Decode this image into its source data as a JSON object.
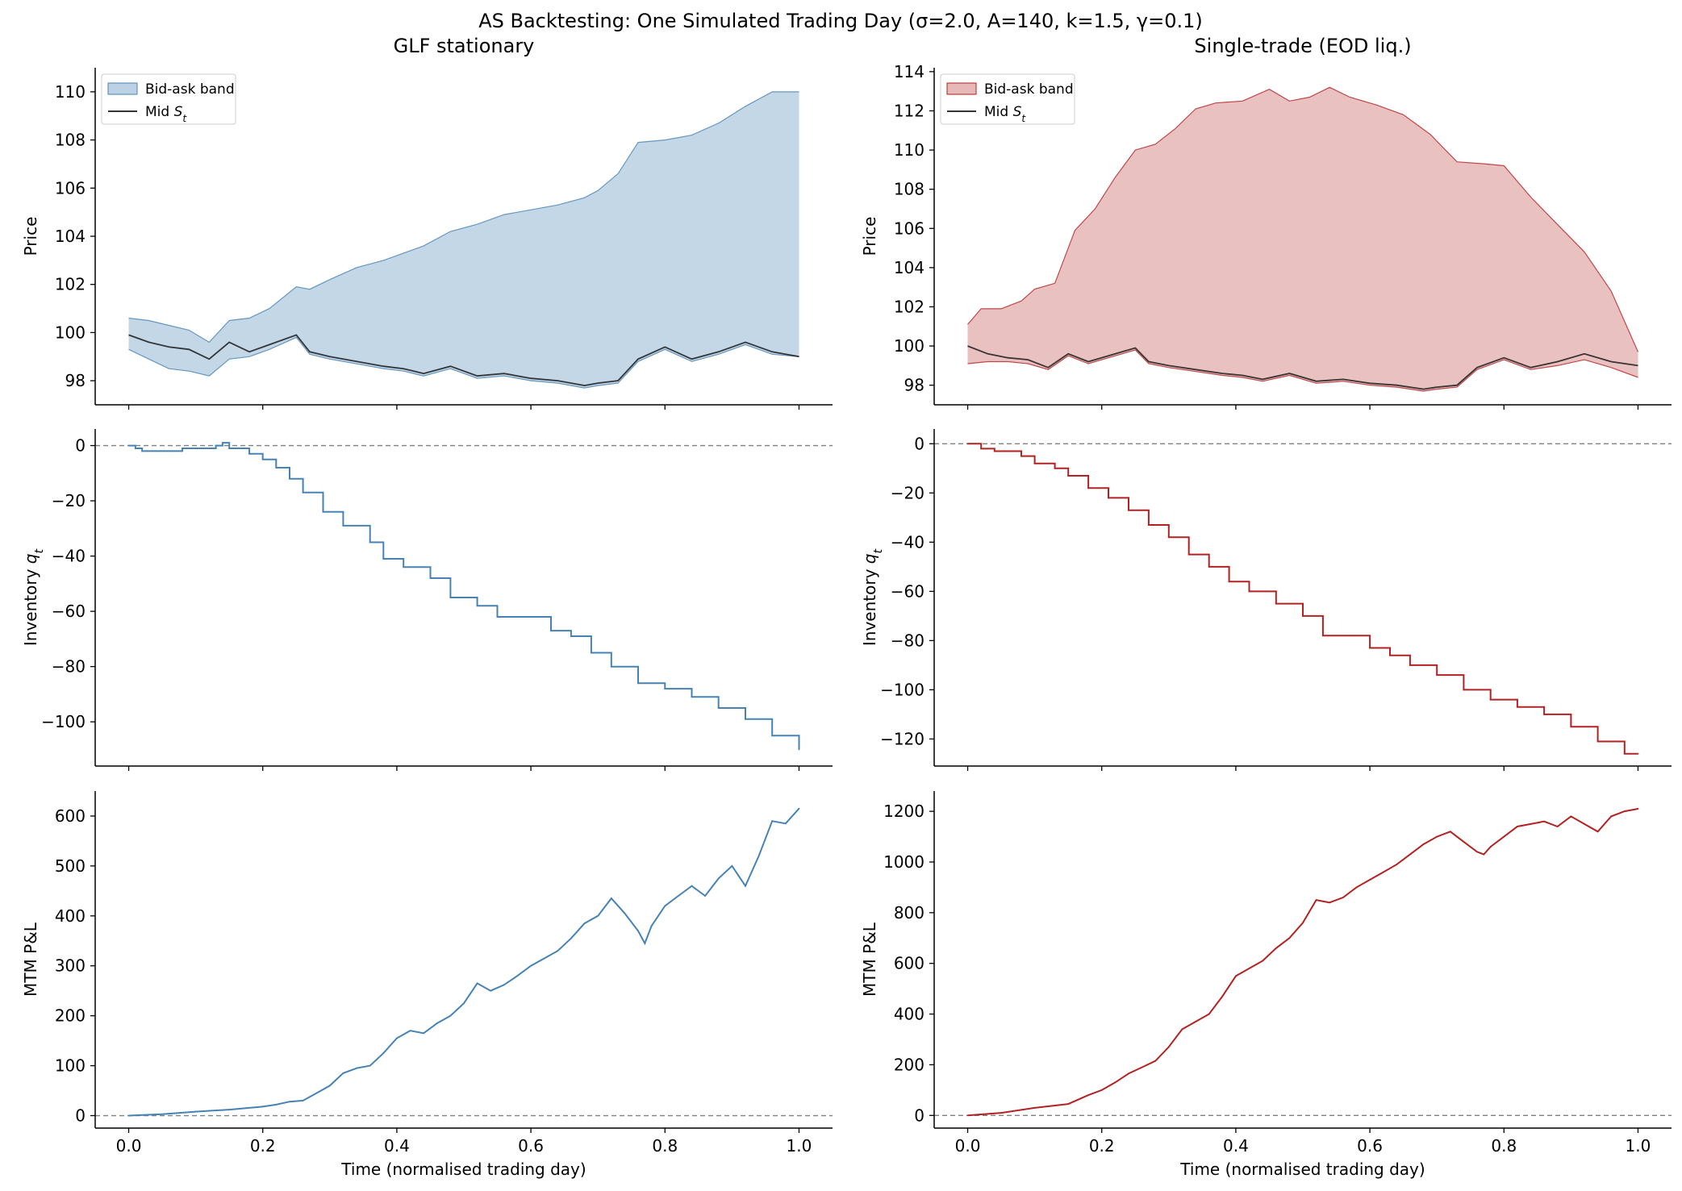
{
  "suptitle": "AS Backtesting: One Simulated Trading Day  (σ=2.0, A=140, k=1.5, γ=0.1)",
  "colors": {
    "glf_line": "#4682b4",
    "glf_band": "#b0c9df",
    "single_line": "#b22222",
    "single_band": "#e3acac",
    "mid": "#1a1a1a",
    "zero_line": "#808080"
  },
  "chart_data": [
    {
      "type": "area",
      "panel": "glf-price",
      "title": "GLF stationary",
      "ylabel": "Price",
      "xlabel": "",
      "xlim": [
        -0.05,
        1.05
      ],
      "ylim": [
        97.0,
        111.0
      ],
      "xticks": [
        0.0,
        0.2,
        0.4,
        0.6,
        0.8,
        1.0
      ],
      "xtick_labels": [
        "",
        "",
        "",
        "",
        "",
        ""
      ],
      "yticks": [
        98,
        100,
        102,
        104,
        106,
        108,
        110
      ],
      "ytick_labels": [
        "98",
        "100",
        "102",
        "104",
        "106",
        "108",
        "110"
      ],
      "legend": {
        "position": "top-left",
        "entries": [
          {
            "label": "Bid-ask band",
            "kind": "band"
          },
          {
            "label": "Mid S_t",
            "kind": "line"
          }
        ]
      },
      "series": [
        {
          "name": "Mid S_t",
          "x": [
            0,
            0.03,
            0.06,
            0.09,
            0.12,
            0.15,
            0.18,
            0.21,
            0.25,
            0.27,
            0.3,
            0.34,
            0.38,
            0.41,
            0.44,
            0.48,
            0.52,
            0.56,
            0.6,
            0.64,
            0.68,
            0.7,
            0.73,
            0.76,
            0.8,
            0.84,
            0.88,
            0.92,
            0.96,
            1.0
          ],
          "values": [
            99.9,
            99.6,
            99.4,
            99.3,
            98.9,
            99.6,
            99.2,
            99.5,
            99.9,
            99.2,
            99.0,
            98.8,
            98.6,
            98.5,
            98.3,
            98.6,
            98.2,
            98.3,
            98.1,
            98.0,
            97.8,
            97.9,
            98.0,
            98.9,
            99.4,
            98.9,
            99.2,
            99.6,
            99.2,
            99.0
          ]
        },
        {
          "name": "Ask",
          "x": [
            0,
            0.03,
            0.06,
            0.09,
            0.12,
            0.15,
            0.18,
            0.21,
            0.25,
            0.27,
            0.3,
            0.34,
            0.38,
            0.41,
            0.44,
            0.48,
            0.52,
            0.56,
            0.6,
            0.64,
            0.68,
            0.7,
            0.73,
            0.76,
            0.8,
            0.84,
            0.88,
            0.92,
            0.96,
            1.0
          ],
          "values": [
            100.6,
            100.5,
            100.3,
            100.1,
            99.6,
            100.5,
            100.6,
            101.0,
            101.9,
            101.8,
            102.2,
            102.7,
            103.0,
            103.3,
            103.6,
            104.2,
            104.5,
            104.9,
            105.1,
            105.3,
            105.6,
            105.9,
            106.6,
            107.9,
            108.0,
            108.2,
            108.7,
            109.4,
            110.0,
            110.0
          ]
        },
        {
          "name": "Bid",
          "x": [
            0,
            0.03,
            0.06,
            0.09,
            0.12,
            0.15,
            0.18,
            0.21,
            0.25,
            0.27,
            0.3,
            0.34,
            0.38,
            0.41,
            0.44,
            0.48,
            0.52,
            0.56,
            0.6,
            0.64,
            0.68,
            0.7,
            0.73,
            0.76,
            0.8,
            0.84,
            0.88,
            0.92,
            0.96,
            1.0
          ],
          "values": [
            99.3,
            98.9,
            98.5,
            98.4,
            98.2,
            98.9,
            99.0,
            99.3,
            99.8,
            99.1,
            98.9,
            98.7,
            98.5,
            98.4,
            98.2,
            98.5,
            98.1,
            98.2,
            98.0,
            97.9,
            97.7,
            97.8,
            97.9,
            98.8,
            99.3,
            98.8,
            99.1,
            99.5,
            99.1,
            99.0
          ]
        }
      ]
    },
    {
      "type": "area",
      "panel": "single-price",
      "title": "Single-trade (EOD liq.)",
      "ylabel": "Price",
      "xlabel": "",
      "xlim": [
        -0.05,
        1.05
      ],
      "ylim": [
        97.0,
        114.2
      ],
      "xticks": [
        0.0,
        0.2,
        0.4,
        0.6,
        0.8,
        1.0
      ],
      "xtick_labels": [
        "",
        "",
        "",
        "",
        "",
        ""
      ],
      "yticks": [
        98,
        100,
        102,
        104,
        106,
        108,
        110,
        112,
        114
      ],
      "ytick_labels": [
        "98",
        "100",
        "102",
        "104",
        "106",
        "108",
        "110",
        "112",
        "114"
      ],
      "legend": {
        "position": "top-left",
        "entries": [
          {
            "label": "Bid-ask band",
            "kind": "band"
          },
          {
            "label": "Mid S_t",
            "kind": "line"
          }
        ]
      },
      "series": [
        {
          "name": "Mid S_t",
          "x": [
            0,
            0.03,
            0.06,
            0.09,
            0.12,
            0.15,
            0.18,
            0.21,
            0.25,
            0.27,
            0.3,
            0.34,
            0.38,
            0.41,
            0.44,
            0.48,
            0.52,
            0.56,
            0.6,
            0.64,
            0.68,
            0.7,
            0.73,
            0.76,
            0.8,
            0.84,
            0.88,
            0.92,
            0.96,
            1.0
          ],
          "values": [
            100.0,
            99.6,
            99.4,
            99.3,
            98.9,
            99.6,
            99.2,
            99.5,
            99.9,
            99.2,
            99.0,
            98.8,
            98.6,
            98.5,
            98.3,
            98.6,
            98.2,
            98.3,
            98.1,
            98.0,
            97.8,
            97.9,
            98.0,
            98.9,
            99.4,
            98.9,
            99.2,
            99.6,
            99.2,
            99.0
          ]
        },
        {
          "name": "Ask",
          "x": [
            0,
            0.02,
            0.05,
            0.08,
            0.1,
            0.13,
            0.16,
            0.19,
            0.22,
            0.25,
            0.28,
            0.31,
            0.34,
            0.37,
            0.41,
            0.45,
            0.48,
            0.51,
            0.54,
            0.57,
            0.61,
            0.65,
            0.69,
            0.73,
            0.77,
            0.8,
            0.84,
            0.88,
            0.92,
            0.96,
            1.0
          ],
          "values": [
            101.1,
            101.9,
            101.9,
            102.3,
            102.9,
            103.2,
            105.9,
            107.0,
            108.6,
            110.0,
            110.3,
            111.1,
            112.1,
            112.4,
            112.5,
            113.1,
            112.5,
            112.7,
            113.2,
            112.7,
            112.3,
            111.8,
            110.8,
            109.4,
            109.3,
            109.2,
            107.6,
            106.2,
            104.8,
            102.8,
            99.7
          ]
        },
        {
          "name": "Bid",
          "x": [
            0,
            0.03,
            0.06,
            0.09,
            0.12,
            0.15,
            0.18,
            0.21,
            0.25,
            0.27,
            0.3,
            0.34,
            0.38,
            0.41,
            0.44,
            0.48,
            0.52,
            0.56,
            0.6,
            0.64,
            0.68,
            0.7,
            0.73,
            0.76,
            0.8,
            0.84,
            0.88,
            0.92,
            0.96,
            1.0
          ],
          "values": [
            99.1,
            99.2,
            99.2,
            99.1,
            98.8,
            99.5,
            99.1,
            99.4,
            99.8,
            99.1,
            98.9,
            98.7,
            98.5,
            98.4,
            98.2,
            98.5,
            98.1,
            98.2,
            98.0,
            97.9,
            97.7,
            97.8,
            97.9,
            98.8,
            99.3,
            98.8,
            99.0,
            99.3,
            98.9,
            98.4
          ]
        }
      ]
    },
    {
      "type": "line",
      "panel": "glf-inventory",
      "ylabel": "Inventory q_t",
      "xlabel": "",
      "xlim": [
        -0.05,
        1.05
      ],
      "ylim": [
        -116,
        6
      ],
      "xticks": [
        0.0,
        0.2,
        0.4,
        0.6,
        0.8,
        1.0
      ],
      "xtick_labels": [
        "",
        "",
        "",
        "",
        "",
        ""
      ],
      "yticks": [
        0,
        -20,
        -40,
        -60,
        -80,
        -100
      ],
      "ytick_labels": [
        "0",
        "−20",
        "−40",
        "−60",
        "−80",
        "−100"
      ],
      "step": true,
      "reference_line": 0,
      "series": [
        {
          "name": "",
          "x": [
            0,
            0.01,
            0.02,
            0.06,
            0.08,
            0.1,
            0.13,
            0.14,
            0.15,
            0.18,
            0.2,
            0.22,
            0.24,
            0.26,
            0.29,
            0.32,
            0.36,
            0.38,
            0.41,
            0.45,
            0.48,
            0.52,
            0.55,
            0.59,
            0.63,
            0.66,
            0.69,
            0.72,
            0.76,
            0.8,
            0.84,
            0.88,
            0.92,
            0.96,
            1.0
          ],
          "values": [
            0,
            -1,
            -2,
            -2,
            -1,
            -1,
            0,
            1,
            -1,
            -3,
            -5,
            -8,
            -12,
            -17,
            -24,
            -29,
            -35,
            -41,
            -44,
            -48,
            -55,
            -58,
            -62,
            -62,
            -67,
            -69,
            -75,
            -80,
            -86,
            -88,
            -91,
            -95,
            -99,
            -105,
            -110
          ]
        }
      ]
    },
    {
      "type": "line",
      "panel": "single-inventory",
      "ylabel": "Inventory q_t",
      "xlabel": "",
      "xlim": [
        -0.05,
        1.05
      ],
      "ylim": [
        -131,
        6
      ],
      "xticks": [
        0.0,
        0.2,
        0.4,
        0.6,
        0.8,
        1.0
      ],
      "xtick_labels": [
        "",
        "",
        "",
        "",
        "",
        ""
      ],
      "yticks": [
        0,
        -20,
        -40,
        -60,
        -80,
        -100,
        -120
      ],
      "ytick_labels": [
        "0",
        "−20",
        "−40",
        "−60",
        "−80",
        "−100",
        "−120"
      ],
      "step": true,
      "reference_line": 0,
      "series": [
        {
          "name": "",
          "x": [
            0,
            0.02,
            0.04,
            0.08,
            0.1,
            0.13,
            0.15,
            0.18,
            0.21,
            0.24,
            0.27,
            0.3,
            0.33,
            0.36,
            0.39,
            0.42,
            0.46,
            0.5,
            0.53,
            0.57,
            0.6,
            0.63,
            0.66,
            0.7,
            0.74,
            0.78,
            0.82,
            0.86,
            0.9,
            0.94,
            0.98,
            1.0
          ],
          "values": [
            0,
            -2,
            -3,
            -5,
            -8,
            -10,
            -13,
            -18,
            -22,
            -27,
            -33,
            -38,
            -45,
            -50,
            -56,
            -60,
            -65,
            -70,
            -78,
            -78,
            -83,
            -86,
            -90,
            -94,
            -100,
            -104,
            -107,
            -110,
            -115,
            -121,
            -126,
            -126
          ]
        }
      ]
    },
    {
      "type": "line",
      "panel": "glf-pnl",
      "ylabel": "MTM P&L",
      "xlabel": "Time (normalised trading day)",
      "xlim": [
        -0.05,
        1.05
      ],
      "ylim": [
        -25,
        650
      ],
      "xticks": [
        0.0,
        0.2,
        0.4,
        0.6,
        0.8,
        1.0
      ],
      "xtick_labels": [
        "0.0",
        "0.2",
        "0.4",
        "0.6",
        "0.8",
        "1.0"
      ],
      "yticks": [
        0,
        100,
        200,
        300,
        400,
        500,
        600
      ],
      "ytick_labels": [
        "0",
        "100",
        "200",
        "300",
        "400",
        "500",
        "600"
      ],
      "reference_line": 0,
      "series": [
        {
          "name": "",
          "x": [
            0,
            0.05,
            0.1,
            0.15,
            0.2,
            0.22,
            0.24,
            0.26,
            0.28,
            0.3,
            0.32,
            0.34,
            0.36,
            0.38,
            0.4,
            0.42,
            0.44,
            0.46,
            0.48,
            0.5,
            0.52,
            0.54,
            0.56,
            0.58,
            0.6,
            0.62,
            0.64,
            0.66,
            0.68,
            0.7,
            0.72,
            0.74,
            0.76,
            0.77,
            0.78,
            0.8,
            0.82,
            0.84,
            0.86,
            0.88,
            0.9,
            0.92,
            0.94,
            0.96,
            0.98,
            1.0
          ],
          "values": [
            0,
            3,
            8,
            12,
            18,
            22,
            28,
            30,
            45,
            60,
            85,
            95,
            100,
            125,
            155,
            170,
            165,
            185,
            200,
            225,
            265,
            250,
            262,
            280,
            300,
            315,
            330,
            355,
            385,
            400,
            435,
            405,
            370,
            345,
            380,
            420,
            440,
            460,
            440,
            475,
            500,
            460,
            520,
            590,
            585,
            615
          ]
        }
      ]
    },
    {
      "type": "line",
      "panel": "single-pnl",
      "ylabel": "MTM P&L",
      "xlabel": "Time (normalised trading day)",
      "xlim": [
        -0.05,
        1.05
      ],
      "ylim": [
        -50,
        1280
      ],
      "xticks": [
        0.0,
        0.2,
        0.4,
        0.6,
        0.8,
        1.0
      ],
      "xtick_labels": [
        "0.0",
        "0.2",
        "0.4",
        "0.6",
        "0.8",
        "1.0"
      ],
      "yticks": [
        0,
        200,
        400,
        600,
        800,
        1000,
        1200
      ],
      "ytick_labels": [
        "0",
        "200",
        "400",
        "600",
        "800",
        "1000",
        "1200"
      ],
      "reference_line": 0,
      "series": [
        {
          "name": "",
          "x": [
            0,
            0.05,
            0.1,
            0.15,
            0.18,
            0.2,
            0.22,
            0.24,
            0.26,
            0.28,
            0.3,
            0.32,
            0.34,
            0.36,
            0.38,
            0.4,
            0.42,
            0.44,
            0.46,
            0.48,
            0.5,
            0.52,
            0.54,
            0.56,
            0.58,
            0.6,
            0.62,
            0.64,
            0.66,
            0.68,
            0.7,
            0.72,
            0.74,
            0.76,
            0.77,
            0.78,
            0.8,
            0.82,
            0.84,
            0.86,
            0.88,
            0.9,
            0.92,
            0.94,
            0.96,
            0.98,
            1.0
          ],
          "values": [
            0,
            10,
            30,
            45,
            80,
            100,
            130,
            165,
            190,
            215,
            270,
            340,
            370,
            400,
            470,
            550,
            580,
            610,
            660,
            700,
            760,
            850,
            840,
            860,
            900,
            930,
            960,
            990,
            1030,
            1070,
            1100,
            1120,
            1080,
            1040,
            1030,
            1060,
            1100,
            1140,
            1150,
            1160,
            1140,
            1180,
            1150,
            1120,
            1180,
            1200,
            1210
          ]
        }
      ]
    }
  ]
}
